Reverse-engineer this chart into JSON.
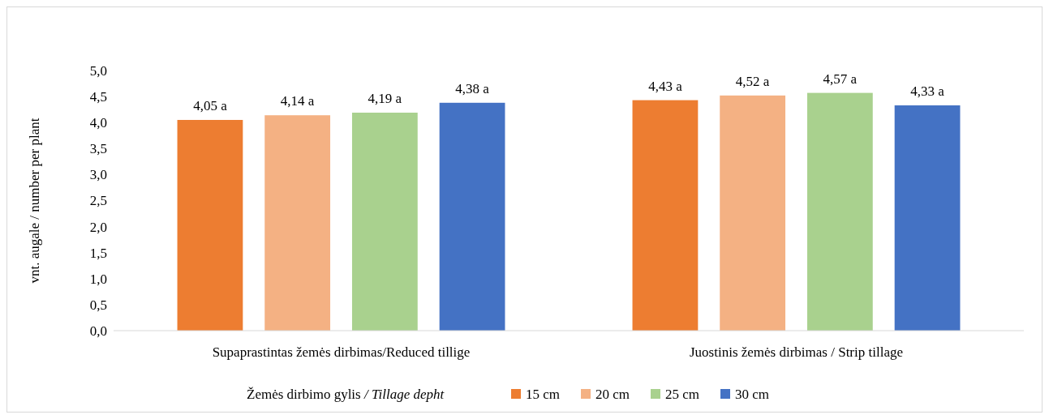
{
  "chart_data": {
    "type": "bar",
    "ylabel": "vnt. augale / number per plant",
    "legend_title": "Žemės dirbimo gylis / Tillage depht",
    "categories": [
      "Supaprastintas žemės dirbimas/Reduced tillige",
      "Juostinis žemės dirbimas / Strip tillage"
    ],
    "series": [
      {
        "name": "15 cm",
        "color": "#ed7d31",
        "values": [
          4.05,
          4.43
        ],
        "value_labels": [
          "4,05 a",
          "4,43 a"
        ]
      },
      {
        "name": "20 cm",
        "color": "#f4b183",
        "values": [
          4.14,
          4.52
        ],
        "value_labels": [
          "4,14 a",
          "4,52 a"
        ]
      },
      {
        "name": "25 cm",
        "color": "#a9d18e",
        "values": [
          4.19,
          4.57
        ],
        "value_labels": [
          "4,19 a",
          "4,57 a"
        ]
      },
      {
        "name": "30 cm",
        "color": "#4472c4",
        "values": [
          4.38,
          4.33
        ],
        "value_labels": [
          "4,38 a",
          "4,33 a"
        ]
      }
    ],
    "ylim": [
      0,
      5
    ],
    "yticks": [
      {
        "value": 0,
        "label": "0,0"
      },
      {
        "value": 0.5,
        "label": "0,5"
      },
      {
        "value": 1,
        "label": "1,0"
      },
      {
        "value": 1.5,
        "label": "1,5"
      },
      {
        "value": 2,
        "label": "2,0"
      },
      {
        "value": 2.5,
        "label": "2,5"
      },
      {
        "value": 3,
        "label": "3,0"
      },
      {
        "value": 3.5,
        "label": "3,5"
      },
      {
        "value": 4,
        "label": "4,0"
      },
      {
        "value": 4.5,
        "label": "4,5"
      },
      {
        "value": 5,
        "label": "5,0"
      }
    ],
    "legend": "bottom"
  }
}
